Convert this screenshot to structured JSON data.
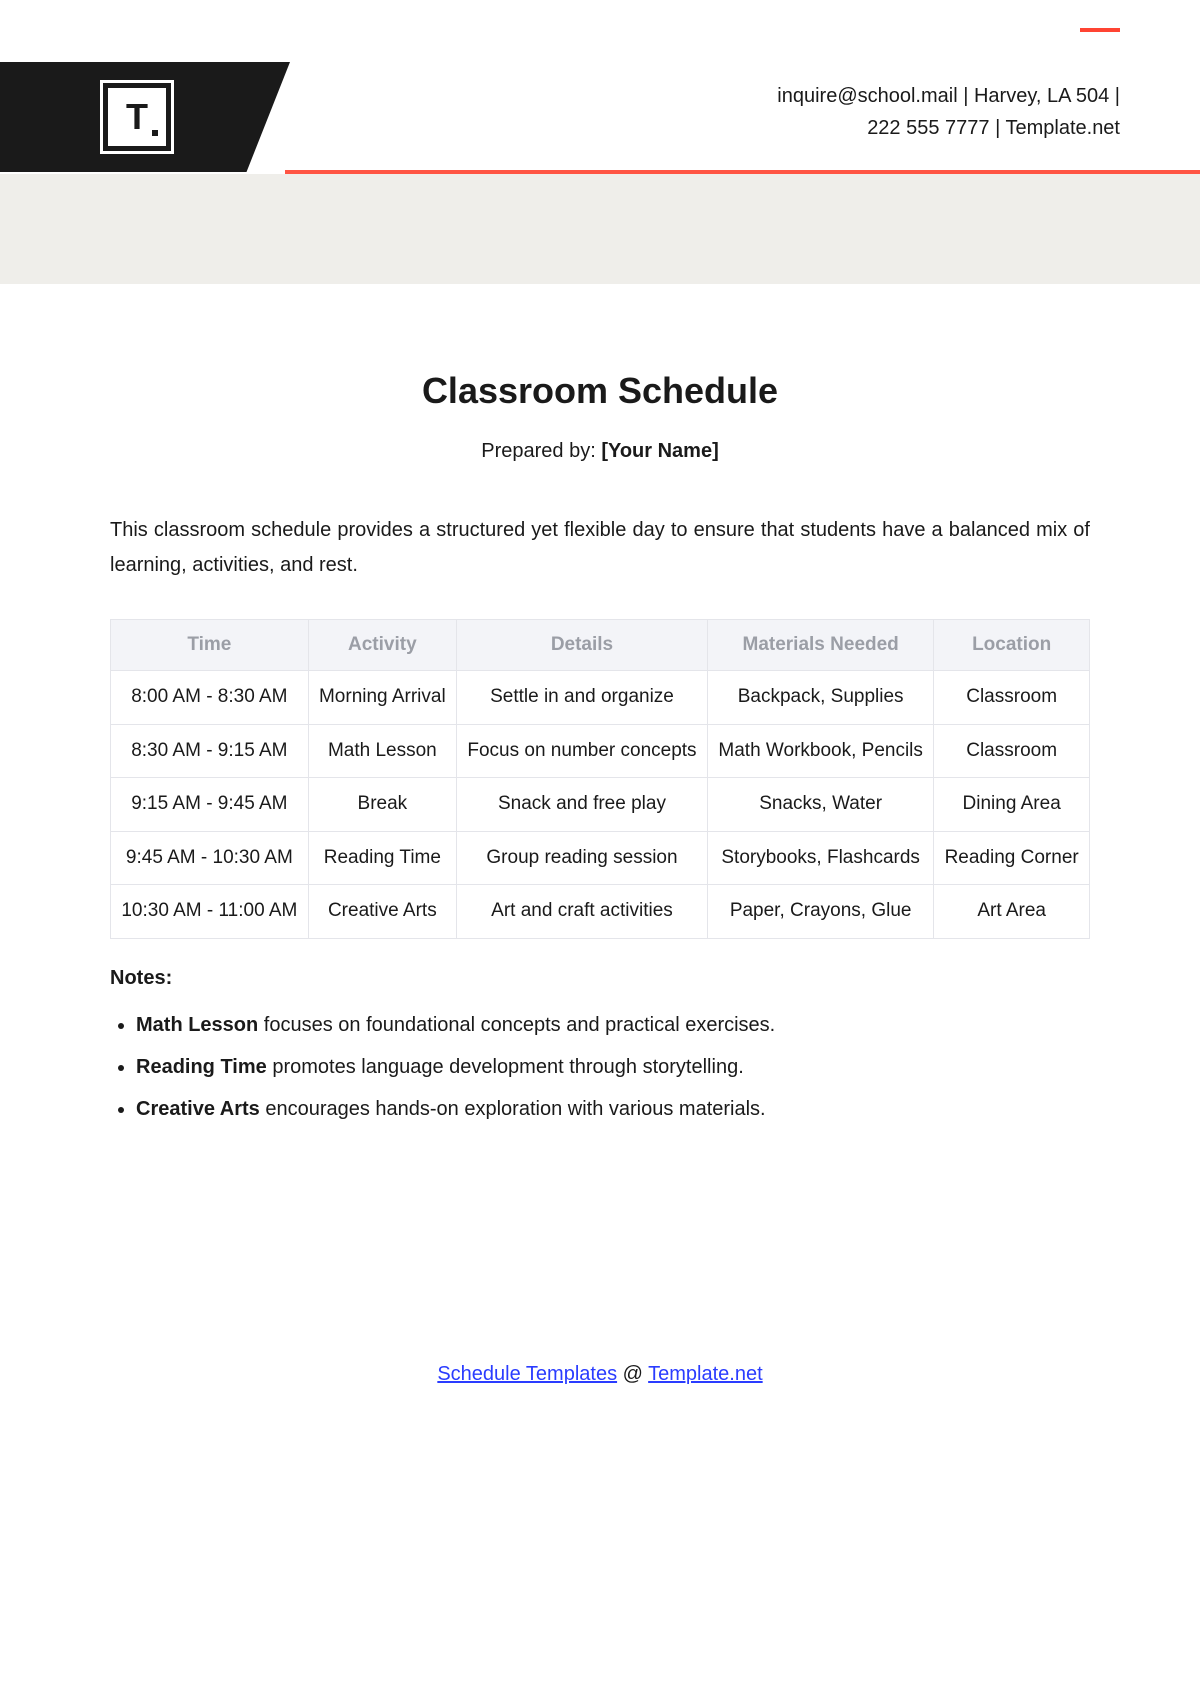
{
  "header": {
    "logo_letter": "T",
    "contact_line1": "inquire@school.mail | Harvey, LA 504 |",
    "contact_line2": "222 555 7777 | Template.net"
  },
  "doc": {
    "title": "Classroom Schedule",
    "prepared_label": "Prepared by: ",
    "prepared_value": "[Your Name]",
    "intro": "This classroom schedule provides a structured yet flexible day to ensure that students have a balanced mix of learning, activities, and rest."
  },
  "table": {
    "columns": [
      "Time",
      "Activity",
      "Details",
      "Materials Needed",
      "Location"
    ],
    "rows": [
      [
        "8:00 AM - 8:30 AM",
        "Morning Arrival",
        "Settle in and organize",
        "Backpack, Supplies",
        "Classroom"
      ],
      [
        "8:30 AM - 9:15 AM",
        "Math Lesson",
        "Focus on number concepts",
        "Math Workbook, Pencils",
        "Classroom"
      ],
      [
        "9:15 AM - 9:45 AM",
        "Break",
        "Snack and free play",
        "Snacks, Water",
        "Dining Area"
      ],
      [
        "9:45 AM - 10:30 AM",
        "Reading Time",
        "Group reading session",
        "Storybooks, Flashcards",
        "Reading Corner"
      ],
      [
        "10:30 AM - 11:00 AM",
        "Creative Arts",
        "Art and craft activities",
        "Paper, Crayons, Glue",
        "Art Area"
      ]
    ]
  },
  "notes": {
    "heading": "Notes:",
    "items": [
      {
        "bold": "Math Lesson",
        "rest": " focuses on foundational concepts and practical exercises."
      },
      {
        "bold": "Reading Time",
        "rest": " promotes language development through storytelling."
      },
      {
        "bold": "Creative Arts",
        "rest": " encourages hands-on exploration with various materials."
      }
    ]
  },
  "footer": {
    "link1": "Schedule Templates",
    "at": " @ ",
    "link2": "Template.net"
  },
  "colors": {
    "accent": "#ff5544",
    "black": "#1a1a1a",
    "beige": "#efeeea",
    "table_header_bg": "#f3f4f8",
    "table_header_text": "#9b9ea6",
    "table_border": "#e4e5ea",
    "link": "#2a3cff"
  }
}
